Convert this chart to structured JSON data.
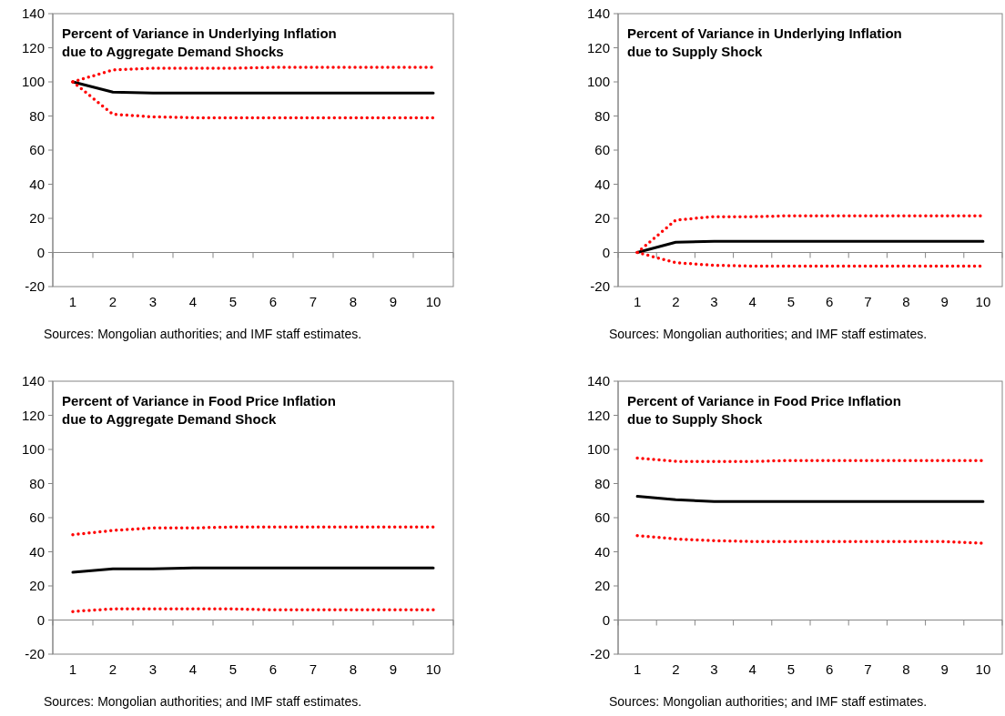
{
  "chart_data": [
    {
      "type": "line",
      "title": "Percent of Variance in Underlying Inflation\ndue to Aggregate Demand Shocks",
      "categories": [
        "1",
        "2",
        "3",
        "4",
        "5",
        "6",
        "7",
        "8",
        "9",
        "10"
      ],
      "ylim": [
        -20,
        140
      ],
      "yticks": [
        -20,
        0,
        20,
        40,
        60,
        80,
        100,
        120,
        140
      ],
      "marker": "none",
      "annotations": [
        "Sources: Mongolian authorities; and IMF staff estimates."
      ],
      "series": [
        {
          "color": "#000000",
          "line_style": "solid",
          "values": [
            100,
            94,
            93.5,
            93.5,
            93.5,
            93.5,
            93.5,
            93.5,
            93.5,
            93.5
          ]
        },
        {
          "color": "#ff0000",
          "line_style": "dotted",
          "values": [
            100,
            107,
            108,
            108,
            108,
            108.5,
            108.5,
            108.5,
            108.5,
            108.5
          ]
        },
        {
          "color": "#ff0000",
          "line_style": "dotted",
          "values": [
            100,
            81,
            79.5,
            79,
            79,
            79,
            79,
            79,
            79,
            79
          ]
        }
      ]
    },
    {
      "type": "line",
      "title": "Percent of Variance in Underlying Inflation\ndue to Supply Shock",
      "categories": [
        "1",
        "2",
        "3",
        "4",
        "5",
        "6",
        "7",
        "8",
        "9",
        "10"
      ],
      "ylim": [
        -20,
        140
      ],
      "yticks": [
        -20,
        0,
        20,
        40,
        60,
        80,
        100,
        120,
        140
      ],
      "marker": "none",
      "annotations": [
        "Sources: Mongolian authorities; and IMF staff estimates."
      ],
      "series": [
        {
          "color": "#000000",
          "line_style": "solid",
          "values": [
            0,
            6,
            6.5,
            6.5,
            6.5,
            6.5,
            6.5,
            6.5,
            6.5,
            6.5
          ]
        },
        {
          "color": "#ff0000",
          "line_style": "dotted",
          "values": [
            0,
            19,
            21,
            21,
            21.5,
            21.5,
            21.5,
            21.5,
            21.5,
            21.5
          ]
        },
        {
          "color": "#ff0000",
          "line_style": "dotted",
          "values": [
            0,
            -6,
            -7.5,
            -8,
            -8,
            -8,
            -8,
            -8,
            -8,
            -8
          ]
        }
      ]
    },
    {
      "type": "line",
      "title": "Percent of Variance in Food Price Inflation\ndue to Aggregate Demand Shock",
      "categories": [
        "1",
        "2",
        "3",
        "4",
        "5",
        "6",
        "7",
        "8",
        "9",
        "10"
      ],
      "ylim": [
        -20,
        140
      ],
      "yticks": [
        -20,
        0,
        20,
        40,
        60,
        80,
        100,
        120,
        140
      ],
      "marker": "none",
      "annotations": [
        "Sources: Mongolian authorities; and IMF staff estimates."
      ],
      "series": [
        {
          "color": "#000000",
          "line_style": "solid",
          "values": [
            28,
            30,
            30,
            30.5,
            30.5,
            30.5,
            30.5,
            30.5,
            30.5,
            30.5
          ]
        },
        {
          "color": "#ff0000",
          "line_style": "dotted",
          "values": [
            50,
            52.5,
            54,
            54,
            54.5,
            54.5,
            54.5,
            54.5,
            54.5,
            54.5
          ]
        },
        {
          "color": "#ff0000",
          "line_style": "dotted",
          "values": [
            5,
            6.5,
            6.5,
            6.5,
            6.5,
            6,
            6,
            6,
            6,
            6
          ]
        }
      ]
    },
    {
      "type": "line",
      "title": "Percent of Variance in Food Price Inflation\ndue to Supply Shock",
      "categories": [
        "1",
        "2",
        "3",
        "4",
        "5",
        "6",
        "7",
        "8",
        "9",
        "10"
      ],
      "ylim": [
        -20,
        140
      ],
      "yticks": [
        -20,
        0,
        20,
        40,
        60,
        80,
        100,
        120,
        140
      ],
      "marker": "none",
      "annotations": [
        "Sources: Mongolian authorities; and IMF staff estimates."
      ],
      "series": [
        {
          "color": "#000000",
          "line_style": "solid",
          "values": [
            72.5,
            70.5,
            69.5,
            69.5,
            69.5,
            69.5,
            69.5,
            69.5,
            69.5,
            69.5
          ]
        },
        {
          "color": "#ff0000",
          "line_style": "dotted",
          "values": [
            95,
            93,
            93,
            93,
            93.5,
            93.5,
            93.5,
            93.5,
            93.5,
            93.5
          ]
        },
        {
          "color": "#ff0000",
          "line_style": "dotted",
          "values": [
            49.5,
            47.5,
            46.5,
            46,
            46,
            46,
            46,
            46,
            46,
            45
          ]
        }
      ]
    }
  ]
}
